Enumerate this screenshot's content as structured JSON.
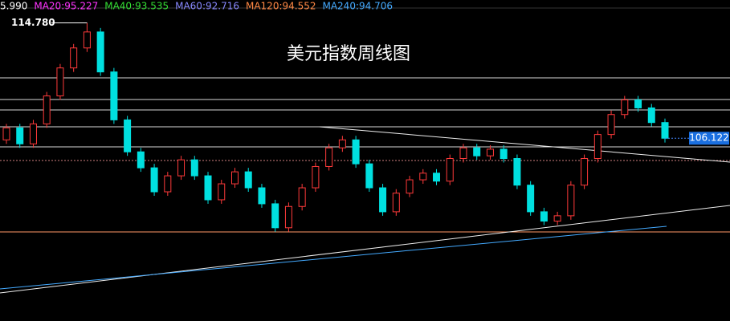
{
  "chart_data": {
    "type": "candlestick",
    "title": "美元指数周线图",
    "ma_legend": [
      {
        "label": "5.990",
        "color": "#ffffff"
      },
      {
        "label": "MA20:95.227",
        "color": "#ff33ff"
      },
      {
        "label": "MA40:93.535",
        "color": "#33dd33"
      },
      {
        "label": "MA60:92.716",
        "color": "#8888ff"
      },
      {
        "label": "MA120:94.552",
        "color": "#ff8844"
      },
      {
        "label": "MA240:94.706",
        "color": "#44aaff"
      }
    ],
    "up_color": "#ff3a3a",
    "down_color": "#00e0e0",
    "ylim": [
      92.4,
      116.5
    ],
    "ohlc": [
      [
        106.0,
        107.2,
        105.7,
        106.9
      ],
      [
        106.9,
        107.2,
        105.4,
        105.7
      ],
      [
        105.7,
        107.5,
        105.4,
        107.2
      ],
      [
        107.2,
        109.6,
        106.9,
        109.3
      ],
      [
        109.3,
        111.7,
        109.0,
        111.4
      ],
      [
        111.4,
        113.2,
        111.1,
        112.9
      ],
      [
        112.9,
        114.78,
        112.6,
        114.1
      ],
      [
        114.1,
        114.4,
        110.8,
        111.1
      ],
      [
        111.1,
        111.4,
        107.2,
        107.5
      ],
      [
        107.5,
        107.8,
        104.8,
        105.1
      ],
      [
        105.1,
        105.4,
        103.6,
        103.9
      ],
      [
        103.9,
        104.2,
        101.8,
        102.1
      ],
      [
        102.1,
        103.6,
        101.8,
        103.3
      ],
      [
        103.3,
        104.8,
        103.0,
        104.5
      ],
      [
        104.5,
        104.8,
        103.0,
        103.3
      ],
      [
        103.3,
        103.6,
        101.2,
        101.5
      ],
      [
        101.5,
        103.0,
        101.2,
        102.7
      ],
      [
        102.7,
        103.9,
        102.4,
        103.6
      ],
      [
        103.6,
        103.9,
        102.1,
        102.4
      ],
      [
        102.4,
        102.7,
        100.9,
        101.2
      ],
      [
        101.2,
        101.5,
        99.1,
        99.4
      ],
      [
        99.4,
        101.3,
        99.1,
        101.0
      ],
      [
        101.0,
        102.7,
        100.7,
        102.4
      ],
      [
        102.4,
        104.3,
        102.1,
        104.0
      ],
      [
        104.0,
        105.7,
        103.7,
        105.4
      ],
      [
        105.4,
        106.3,
        105.1,
        106.0
      ],
      [
        106.0,
        106.3,
        103.9,
        104.2
      ],
      [
        104.2,
        104.5,
        102.1,
        102.4
      ],
      [
        102.4,
        102.7,
        100.3,
        100.6
      ],
      [
        100.6,
        102.3,
        100.3,
        102.0
      ],
      [
        102.0,
        103.3,
        101.7,
        103.0
      ],
      [
        103.0,
        103.8,
        102.7,
        103.5
      ],
      [
        103.5,
        103.8,
        102.6,
        102.9
      ],
      [
        102.9,
        104.9,
        102.6,
        104.6
      ],
      [
        104.6,
        105.7,
        104.3,
        105.4
      ],
      [
        105.4,
        105.7,
        104.5,
        104.8
      ],
      [
        104.8,
        105.6,
        104.5,
        105.3
      ],
      [
        105.3,
        105.6,
        104.3,
        104.6
      ],
      [
        104.6,
        104.9,
        102.3,
        102.6
      ],
      [
        102.6,
        102.9,
        100.3,
        100.6
      ],
      [
        100.6,
        100.9,
        99.6,
        99.9
      ],
      [
        99.9,
        100.6,
        99.6,
        100.3
      ],
      [
        100.3,
        102.9,
        100.0,
        102.6
      ],
      [
        102.6,
        104.9,
        102.3,
        104.6
      ],
      [
        104.6,
        106.7,
        104.3,
        106.4
      ],
      [
        106.4,
        108.2,
        106.1,
        107.9
      ],
      [
        107.9,
        109.3,
        107.6,
        109.0
      ],
      [
        109.0,
        109.3,
        108.1,
        108.4
      ],
      [
        108.4,
        108.7,
        107.0,
        107.3
      ],
      [
        107.3,
        107.6,
        105.8,
        106.122
      ]
    ],
    "annotations": [
      {
        "label": "114.780",
        "value": 114.78,
        "index": 6
      }
    ],
    "last_price": {
      "label": "106.122",
      "value": 106.122
    }
  }
}
